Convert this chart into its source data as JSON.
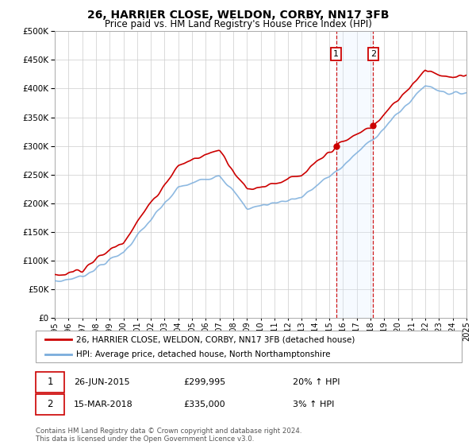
{
  "title": "26, HARRIER CLOSE, WELDON, CORBY, NN17 3FB",
  "subtitle": "Price paid vs. HM Land Registry's House Price Index (HPI)",
  "legend_line1": "26, HARRIER CLOSE, WELDON, CORBY, NN17 3FB (detached house)",
  "legend_line2": "HPI: Average price, detached house, North Northamptonshire",
  "sale1_date": "26-JUN-2015",
  "sale1_price": 299995,
  "sale1_label": "1",
  "sale1_hpi_pct": "20% ↑ HPI",
  "sale2_date": "15-MAR-2018",
  "sale2_price": 335000,
  "sale2_label": "2",
  "sale2_hpi_pct": "3% ↑ HPI",
  "footer": "Contains HM Land Registry data © Crown copyright and database right 2024.\nThis data is licensed under the Open Government Licence v3.0.",
  "ylim": [
    0,
    500000
  ],
  "yticks": [
    0,
    50000,
    100000,
    150000,
    200000,
    250000,
    300000,
    350000,
    400000,
    450000,
    500000
  ],
  "xmin": 1995,
  "xmax": 2025,
  "red_color": "#cc0000",
  "blue_color": "#7aaddc",
  "shade_color": "#ddeeff",
  "background": "#ffffff",
  "grid_color": "#cccccc",
  "sale1_x": 2015.5,
  "sale2_x": 2018.2
}
